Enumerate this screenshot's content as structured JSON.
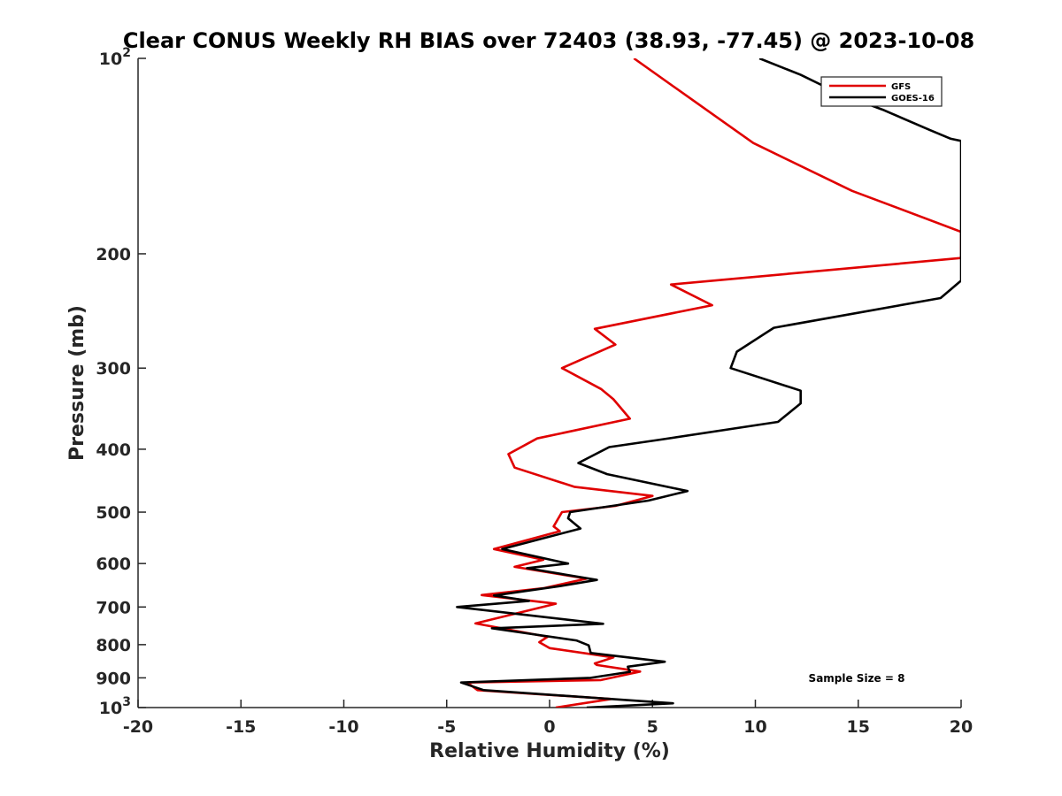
{
  "chart_data": {
    "type": "line",
    "title": "Clear CONUS Weekly RH BIAS over 72403 (38.93, -77.45) @ 2023-10-08",
    "xlabel": "Relative Humidity (%)",
    "ylabel": "Pressure (mb)",
    "xlim": [
      -20,
      20
    ],
    "ylim": [
      100,
      1000
    ],
    "y_scale": "log",
    "y_reversed": true,
    "grid": false,
    "legend_position": "top-right",
    "x_ticks": [
      {
        "value": -20,
        "label": "-20"
      },
      {
        "value": -15,
        "label": "-15"
      },
      {
        "value": -10,
        "label": "-10"
      },
      {
        "value": -5,
        "label": "-5"
      },
      {
        "value": 0,
        "label": "0"
      },
      {
        "value": 5,
        "label": "5"
      },
      {
        "value": 10,
        "label": "10"
      },
      {
        "value": 15,
        "label": "15"
      },
      {
        "value": 20,
        "label": "20"
      }
    ],
    "y_ticks": [
      {
        "value": 100,
        "label": "10",
        "exp": "2"
      },
      {
        "value": 200,
        "label": "200"
      },
      {
        "value": 300,
        "label": "300"
      },
      {
        "value": 400,
        "label": "400"
      },
      {
        "value": 500,
        "label": "500"
      },
      {
        "value": 600,
        "label": "600"
      },
      {
        "value": 700,
        "label": "700"
      },
      {
        "value": 800,
        "label": "800"
      },
      {
        "value": 900,
        "label": "900"
      },
      {
        "value": 1000,
        "label": "10",
        "exp": "3"
      }
    ],
    "annotation": "Sample Size = 8",
    "series": [
      {
        "name": "GFS",
        "color": "#e00000",
        "points": [
          [
            4.1,
            100
          ],
          [
            6.8,
            115
          ],
          [
            9.9,
            135
          ],
          [
            14.7,
            160
          ],
          [
            20,
            185
          ],
          [
            20,
            200
          ],
          [
            20,
            203
          ],
          [
            5.9,
            223
          ],
          [
            7.9,
            240
          ],
          [
            2.2,
            261
          ],
          [
            3.2,
            276
          ],
          [
            0.6,
            300
          ],
          [
            2.5,
            323
          ],
          [
            3.1,
            335
          ],
          [
            3.9,
            359
          ],
          [
            -0.6,
            385
          ],
          [
            -2.0,
            407
          ],
          [
            -1.7,
            427
          ],
          [
            1.2,
            457
          ],
          [
            5.0,
            472
          ],
          [
            3.2,
            489
          ],
          [
            0.6,
            500
          ],
          [
            0.2,
            526
          ],
          [
            0.5,
            535
          ],
          [
            -2.7,
            570
          ],
          [
            -0.3,
            592
          ],
          [
            -1.7,
            607
          ],
          [
            1.8,
            633
          ],
          [
            -0.3,
            655
          ],
          [
            -3.3,
            671
          ],
          [
            0.3,
            692
          ],
          [
            -3.6,
            742
          ],
          [
            -0.1,
            778
          ],
          [
            -0.5,
            793
          ],
          [
            0.0,
            810
          ],
          [
            3.1,
            837
          ],
          [
            2.2,
            855
          ],
          [
            2.3,
            860
          ],
          [
            4.4,
            880
          ],
          [
            2.5,
            907
          ],
          [
            -4.0,
            915
          ],
          [
            -3.5,
            940
          ],
          [
            3.0,
            970
          ],
          [
            0.3,
            1000
          ]
        ]
      },
      {
        "name": "GOES-16",
        "color": "#000000",
        "points": [
          [
            10.2,
            100
          ],
          [
            12.2,
            106
          ],
          [
            14.0,
            113
          ],
          [
            16.2,
            120
          ],
          [
            18.5,
            129
          ],
          [
            19.5,
            133
          ],
          [
            20,
            134
          ],
          [
            20,
            200
          ],
          [
            20,
            220
          ],
          [
            19.0,
            234
          ],
          [
            10.9,
            260
          ],
          [
            9.1,
            283
          ],
          [
            8.8,
            300
          ],
          [
            12.2,
            325
          ],
          [
            12.2,
            340
          ],
          [
            11.1,
            363
          ],
          [
            5.3,
            387
          ],
          [
            2.9,
            397
          ],
          [
            1.4,
            420
          ],
          [
            2.8,
            437
          ],
          [
            6.7,
            464
          ],
          [
            4.8,
            480
          ],
          [
            1.0,
            500
          ],
          [
            0.9,
            511
          ],
          [
            1.5,
            530
          ],
          [
            -2.3,
            570
          ],
          [
            0.9,
            600
          ],
          [
            -1.1,
            610
          ],
          [
            2.3,
            636
          ],
          [
            0.5,
            650
          ],
          [
            -2.7,
            672
          ],
          [
            -1.0,
            685
          ],
          [
            -4.5,
            700
          ],
          [
            2.6,
            743
          ],
          [
            -2.8,
            755
          ],
          [
            1.3,
            788
          ],
          [
            1.9,
            802
          ],
          [
            2.0,
            824
          ],
          [
            5.6,
            850
          ],
          [
            3.8,
            865
          ],
          [
            3.9,
            881
          ],
          [
            2.0,
            900
          ],
          [
            -4.3,
            915
          ],
          [
            -3.2,
            940
          ],
          [
            6.0,
            985
          ],
          [
            1.8,
            1000
          ]
        ]
      }
    ]
  }
}
